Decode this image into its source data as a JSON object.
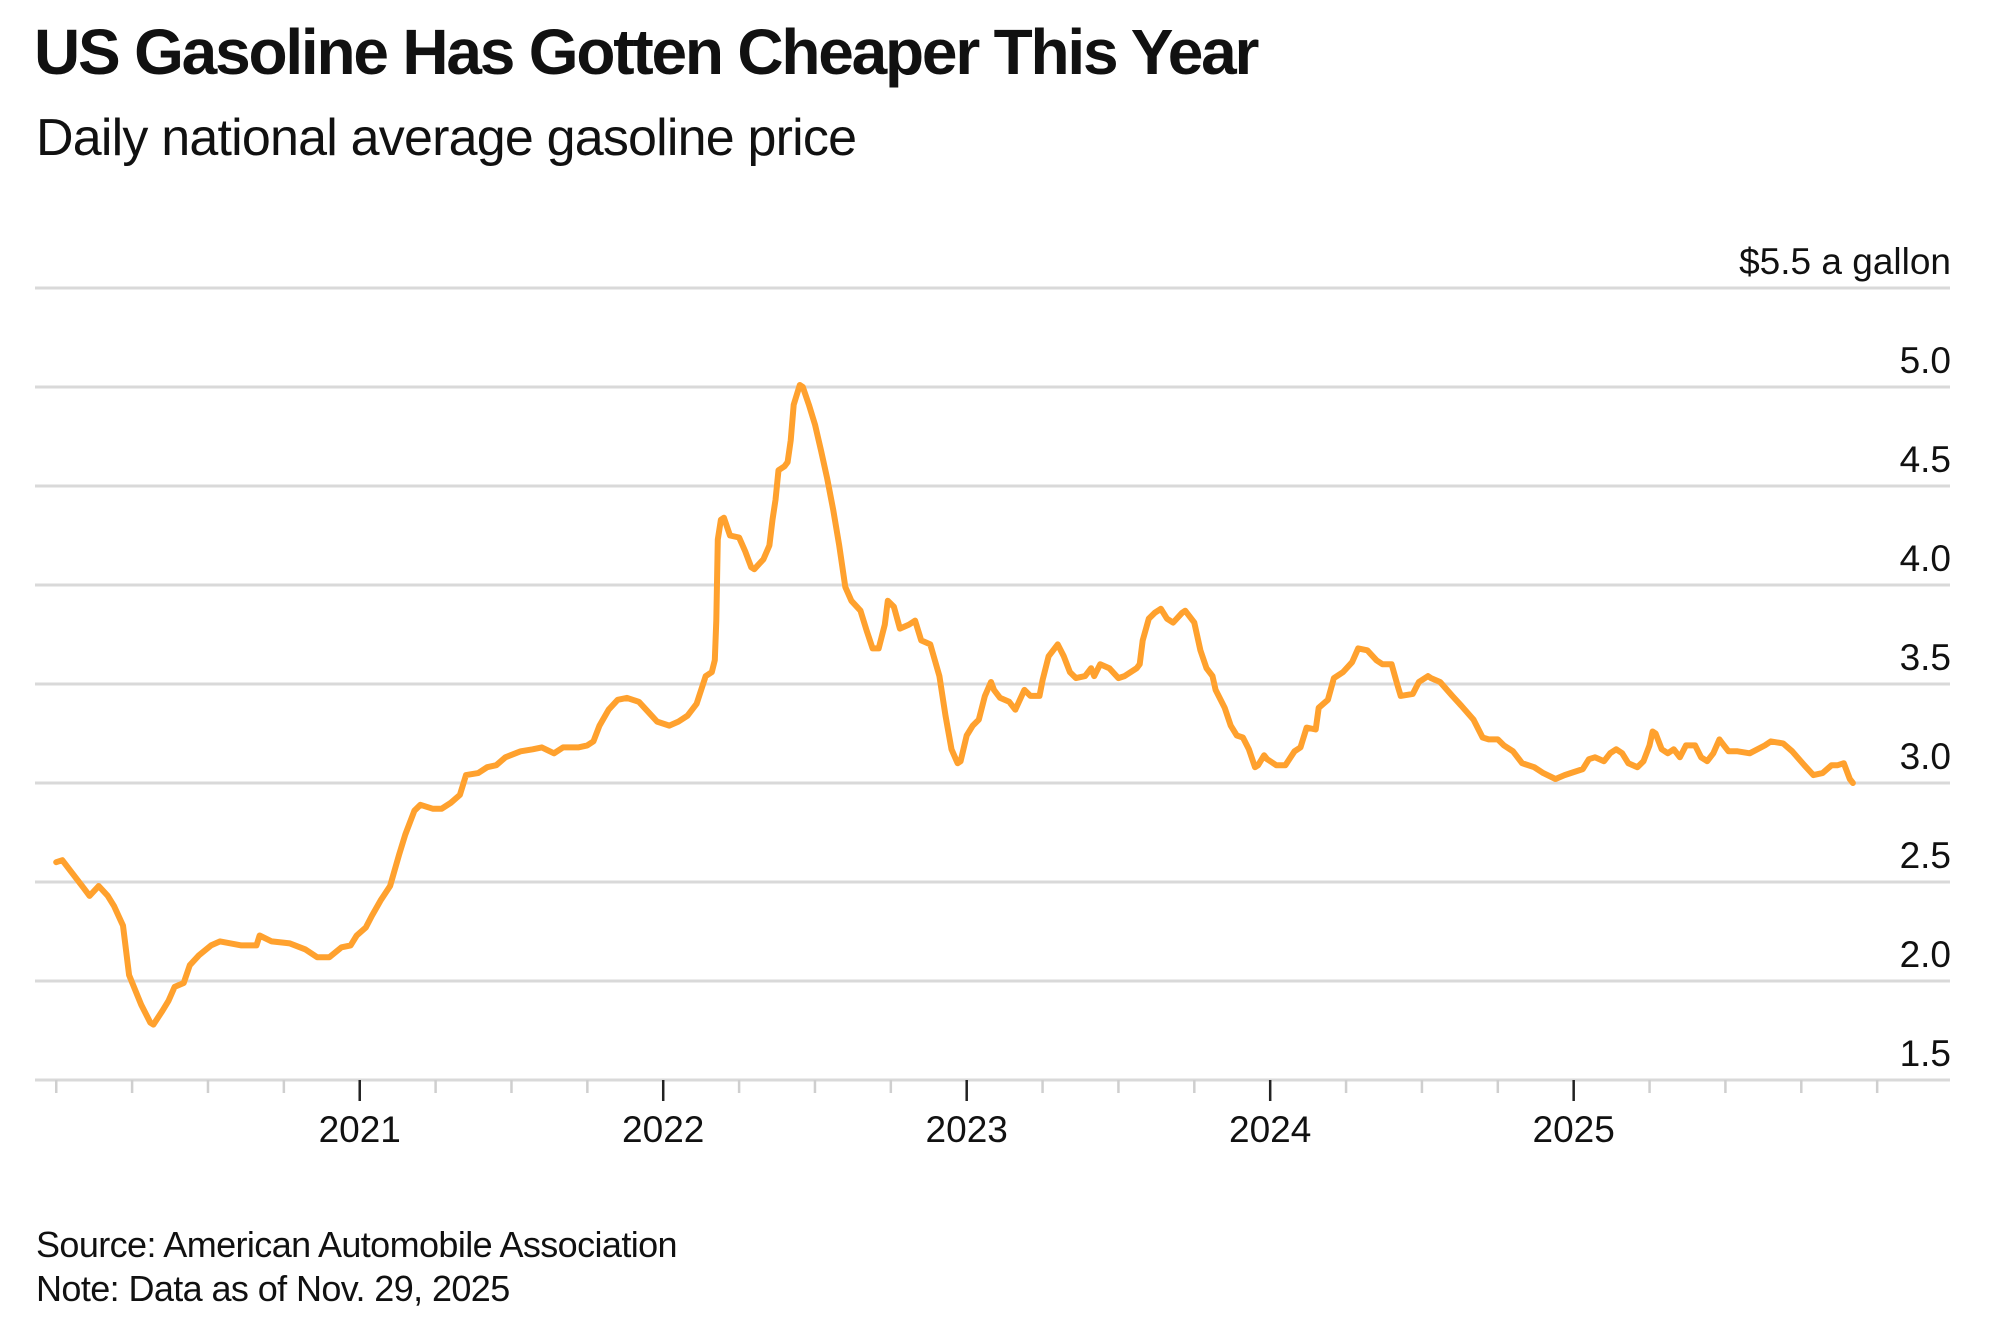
{
  "header": {
    "title": "US Gasoline Has Gotten Cheaper This Year",
    "subtitle": "Daily national average gasoline price"
  },
  "footer": {
    "source": "Source: American Automobile Association",
    "note": "Note: Data as of Nov. 29, 2025"
  },
  "colors": {
    "line": "#FFA12E",
    "grid": "#D9D9D9"
  },
  "chart_data": {
    "type": "line",
    "title": "US Gasoline Has Gotten Cheaper This Year",
    "subtitle": "Daily national average gasoline price",
    "xlabel": "",
    "ylabel": "$ a gallon",
    "xlim": [
      2019.93,
      2026.24
    ],
    "ylim": [
      1.5,
      5.5
    ],
    "x_ticks": [
      2021,
      2022,
      2023,
      2024,
      2025
    ],
    "x_tick_labels": [
      "2021",
      "2022",
      "2023",
      "2024",
      "2025"
    ],
    "x_minor_tick_step_years": 0.25,
    "y_ticks": [
      1.5,
      2.0,
      2.5,
      3.0,
      3.5,
      4.0,
      4.5,
      5.0,
      5.5
    ],
    "y_tick_labels": [
      "1.5",
      "2.0",
      "2.5",
      "3.0",
      "3.5",
      "4.0",
      "4.5",
      "5.0",
      "$5.5 a gallon"
    ],
    "grid": true,
    "y_axis_side": "right",
    "legend": "none",
    "series": [
      {
        "name": "US national average gasoline price",
        "x": [
          2020.0,
          2020.02,
          2020.05,
          2020.09,
          2020.11,
          2020.14,
          2020.17,
          2020.19,
          2020.22,
          2020.24,
          2020.28,
          2020.31,
          2020.32,
          2020.35,
          2020.37,
          2020.39,
          2020.42,
          2020.44,
          2020.47,
          2020.51,
          2020.54,
          2020.61,
          2020.66,
          2020.67,
          2020.71,
          2020.77,
          2020.82,
          2020.86,
          2020.9,
          2020.94,
          2020.97,
          2020.99,
          2021.02,
          2021.04,
          2021.07,
          2021.1,
          2021.13,
          2021.15,
          2021.18,
          2021.2,
          2021.24,
          2021.27,
          2021.3,
          2021.33,
          2021.35,
          2021.39,
          2021.42,
          2021.45,
          2021.48,
          2021.53,
          2021.57,
          2021.6,
          2021.64,
          2021.67,
          2021.72,
          2021.75,
          2021.77,
          2021.79,
          2021.82,
          2021.85,
          2021.88,
          2021.92,
          2021.95,
          2021.98,
          2022.02,
          2022.05,
          2022.08,
          2022.11,
          2022.14,
          2022.16,
          2022.17,
          2022.175,
          2022.18,
          2022.19,
          2022.2,
          2022.22,
          2022.25,
          2022.27,
          2022.29,
          2022.3,
          2022.33,
          2022.35,
          2022.36,
          2022.37,
          2022.38,
          2022.4,
          2022.41,
          2022.42,
          2022.43,
          2022.45,
          2022.46,
          2022.48,
          2022.5,
          2022.52,
          2022.54,
          2022.56,
          2022.58,
          2022.6,
          2022.62,
          2022.65,
          2022.67,
          2022.69,
          2022.71,
          2022.73,
          2022.74,
          2022.76,
          2022.78,
          2022.81,
          2022.83,
          2022.85,
          2022.88,
          2022.91,
          2022.93,
          2022.95,
          2022.97,
          2022.98,
          2023.0,
          2023.02,
          2023.04,
          2023.06,
          2023.08,
          2023.09,
          2023.11,
          2023.14,
          2023.16,
          2023.19,
          2023.21,
          2023.24,
          2023.25,
          2023.27,
          2023.3,
          2023.32,
          2023.34,
          2023.36,
          2023.39,
          2023.41,
          2023.42,
          2023.44,
          2023.47,
          2023.5,
          2023.52,
          2023.56,
          2023.57,
          2023.58,
          2023.6,
          2023.62,
          2023.64,
          2023.66,
          2023.68,
          2023.71,
          2023.72,
          2023.75,
          2023.77,
          2023.79,
          2023.81,
          2023.82,
          2023.85,
          2023.87,
          2023.89,
          2023.91,
          2023.93,
          2023.95,
          2023.96,
          2023.98,
          2023.99,
          2024.02,
          2024.05,
          2024.08,
          2024.1,
          2024.12,
          2024.15,
          2024.16,
          2024.19,
          2024.21,
          2024.24,
          2024.27,
          2024.29,
          2024.32,
          2024.35,
          2024.37,
          2024.4,
          2024.42,
          2024.43,
          2024.47,
          2024.49,
          2024.52,
          2024.53,
          2024.56,
          2024.6,
          2024.63,
          2024.67,
          2024.7,
          2024.72,
          2024.75,
          2024.77,
          2024.8,
          2024.83,
          2024.87,
          2024.9,
          2024.94,
          2024.97,
          2024.99,
          2025.03,
          2025.05,
          2025.07,
          2025.1,
          2025.12,
          2025.14,
          2025.16,
          2025.18,
          2025.21,
          2025.23,
          2025.25,
          2025.26,
          2025.27,
          2025.29,
          2025.31,
          2025.33,
          2025.35,
          2025.37,
          2025.4,
          2025.42,
          2025.44,
          2025.46,
          2025.48,
          2025.49,
          2025.51,
          2025.54,
          2025.58,
          2025.63,
          2025.65,
          2025.69,
          2025.72,
          2025.76,
          2025.79,
          2025.82,
          2025.85,
          2025.87,
          2025.89,
          2025.91,
          2025.92
        ],
        "y": [
          2.6,
          2.61,
          2.55,
          2.47,
          2.43,
          2.48,
          2.43,
          2.38,
          2.28,
          2.03,
          1.88,
          1.79,
          1.78,
          1.85,
          1.9,
          1.97,
          1.99,
          2.08,
          2.13,
          2.18,
          2.2,
          2.18,
          2.18,
          2.23,
          2.2,
          2.19,
          2.16,
          2.12,
          2.12,
          2.17,
          2.18,
          2.23,
          2.27,
          2.33,
          2.41,
          2.48,
          2.64,
          2.74,
          2.86,
          2.89,
          2.87,
          2.87,
          2.9,
          2.94,
          3.04,
          3.05,
          3.08,
          3.09,
          3.13,
          3.16,
          3.17,
          3.18,
          3.15,
          3.18,
          3.18,
          3.19,
          3.21,
          3.29,
          3.37,
          3.42,
          3.43,
          3.41,
          3.36,
          3.31,
          3.29,
          3.31,
          3.34,
          3.4,
          3.54,
          3.56,
          3.62,
          3.82,
          4.23,
          4.33,
          4.34,
          4.25,
          4.24,
          4.17,
          4.09,
          4.08,
          4.13,
          4.2,
          4.33,
          4.43,
          4.58,
          4.6,
          4.62,
          4.73,
          4.91,
          5.01,
          5.0,
          4.91,
          4.81,
          4.68,
          4.54,
          4.38,
          4.2,
          3.99,
          3.92,
          3.87,
          3.77,
          3.68,
          3.68,
          3.8,
          3.92,
          3.89,
          3.78,
          3.8,
          3.82,
          3.72,
          3.7,
          3.54,
          3.34,
          3.17,
          3.1,
          3.11,
          3.24,
          3.29,
          3.32,
          3.44,
          3.51,
          3.47,
          3.43,
          3.41,
          3.37,
          3.47,
          3.44,
          3.44,
          3.52,
          3.64,
          3.7,
          3.64,
          3.56,
          3.53,
          3.54,
          3.58,
          3.54,
          3.6,
          3.58,
          3.53,
          3.54,
          3.58,
          3.6,
          3.72,
          3.83,
          3.86,
          3.88,
          3.83,
          3.81,
          3.86,
          3.87,
          3.81,
          3.67,
          3.58,
          3.54,
          3.47,
          3.38,
          3.29,
          3.24,
          3.23,
          3.17,
          3.08,
          3.09,
          3.14,
          3.12,
          3.09,
          3.09,
          3.16,
          3.18,
          3.28,
          3.27,
          3.38,
          3.42,
          3.53,
          3.56,
          3.61,
          3.68,
          3.67,
          3.62,
          3.6,
          3.6,
          3.49,
          3.44,
          3.45,
          3.51,
          3.54,
          3.53,
          3.51,
          3.44,
          3.39,
          3.32,
          3.23,
          3.22,
          3.22,
          3.19,
          3.16,
          3.1,
          3.08,
          3.05,
          3.02,
          3.04,
          3.05,
          3.07,
          3.12,
          3.13,
          3.11,
          3.15,
          3.17,
          3.15,
          3.1,
          3.08,
          3.11,
          3.19,
          3.26,
          3.25,
          3.17,
          3.15,
          3.17,
          3.13,
          3.19,
          3.19,
          3.13,
          3.11,
          3.15,
          3.22,
          3.2,
          3.16,
          3.16,
          3.15,
          3.19,
          3.21,
          3.2,
          3.16,
          3.09,
          3.04,
          3.05,
          3.09,
          3.09,
          3.1,
          3.02,
          3.0
        ]
      }
    ]
  }
}
